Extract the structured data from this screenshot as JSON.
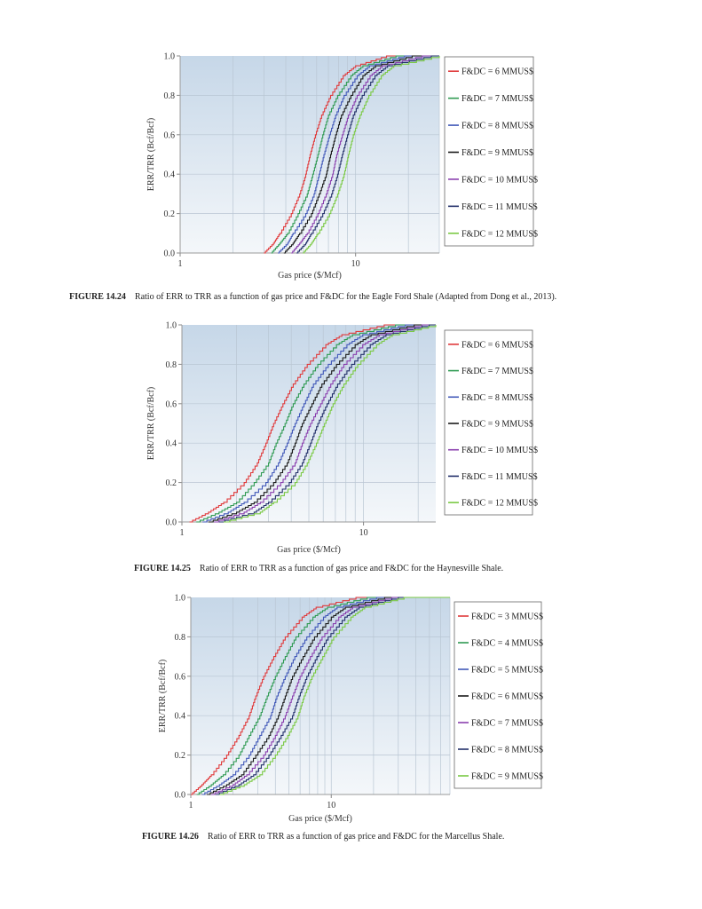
{
  "chart_data": [
    {
      "type": "line",
      "figure_label": "FIGURE 14.24",
      "caption": "Ratio of ERR to TRR as a function of gas price and F&DC for the Eagle Ford Shale (Adapted from Dong et al., 2013).",
      "xlabel": "Gas price ($/Mcf)",
      "ylabel": "ERR/TRR (Bcf/Bcf)",
      "xscale": "log",
      "xlim": [
        1,
        30
      ],
      "ylim": [
        0,
        1
      ],
      "xticks": [
        "1",
        "10"
      ],
      "yticks": [
        "0.0",
        "0.2",
        "0.4",
        "0.6",
        "0.8",
        "1.0"
      ],
      "grid": true,
      "legend_position": "right",
      "y_levels": [
        0,
        0.05,
        0.1,
        0.2,
        0.3,
        0.4,
        0.5,
        0.6,
        0.7,
        0.8,
        0.9,
        0.95,
        1.0
      ],
      "series": [
        {
          "name": "F&DC = 6 MMUS$",
          "color": "#e0393a",
          "x": [
            3.0,
            3.4,
            3.7,
            4.3,
            4.8,
            5.2,
            5.5,
            5.9,
            6.4,
            7.2,
            8.5,
            10,
            15
          ]
        },
        {
          "name": "F&DC = 7 MMUS$",
          "color": "#2f9a52",
          "x": [
            3.3,
            3.7,
            4.1,
            4.7,
            5.3,
            5.7,
            6.1,
            6.5,
            7.0,
            7.9,
            9.4,
            11,
            17
          ]
        },
        {
          "name": "F&DC = 8 MMUS$",
          "color": "#4158b8",
          "x": [
            3.6,
            4.1,
            4.4,
            5.2,
            5.8,
            6.2,
            6.6,
            7.1,
            7.7,
            8.6,
            10.2,
            12,
            19
          ]
        },
        {
          "name": "F&DC = 9 MMUS$",
          "color": "#1a1a1a",
          "x": [
            3.9,
            4.4,
            4.8,
            5.6,
            6.2,
            6.8,
            7.2,
            7.7,
            8.3,
            9.4,
            11,
            13,
            21
          ]
        },
        {
          "name": "F&DC = 10 MMUS$",
          "color": "#8a3fae",
          "x": [
            4.3,
            4.8,
            5.3,
            6.1,
            6.8,
            7.4,
            7.8,
            8.4,
            9.1,
            10.2,
            12.1,
            14.2,
            24
          ]
        },
        {
          "name": "F&DC = 11 MMUS$",
          "color": "#23306a",
          "x": [
            4.6,
            5.2,
            5.6,
            6.5,
            7.3,
            7.9,
            8.4,
            9.0,
            9.7,
            10.9,
            12.9,
            15.2,
            27
          ]
        },
        {
          "name": "F&DC = 12 MMUS$",
          "color": "#7ac943",
          "x": [
            5.0,
            5.6,
            6.1,
            7.1,
            7.9,
            8.6,
            9.1,
            9.7,
            10.6,
            11.9,
            14,
            16.5,
            30
          ]
        }
      ]
    },
    {
      "type": "line",
      "figure_label": "FIGURE 14.25",
      "caption": "Ratio of ERR to TRR as a function of gas price and F&DC for the Haynesville Shale.",
      "xlabel": "Gas price ($/Mcf)",
      "ylabel": "ERR/TRR (Bcf/Bcf)",
      "xscale": "log",
      "xlim": [
        1,
        25
      ],
      "ylim": [
        0,
        1
      ],
      "xticks": [
        "1",
        "10"
      ],
      "yticks": [
        "0.0",
        "0.2",
        "0.4",
        "0.6",
        "0.8",
        "1.0"
      ],
      "grid": true,
      "legend_position": "right",
      "y_levels": [
        0,
        0.05,
        0.1,
        0.2,
        0.3,
        0.4,
        0.5,
        0.6,
        0.7,
        0.8,
        0.9,
        0.95,
        1.0
      ],
      "series": [
        {
          "name": "F&DC = 6 MMUS$",
          "color": "#e0393a",
          "x": [
            1.1,
            1.4,
            1.7,
            2.2,
            2.6,
            2.9,
            3.2,
            3.6,
            4.1,
            4.9,
            6.2,
            7.6,
            13
          ]
        },
        {
          "name": "F&DC = 7 MMUS$",
          "color": "#2f9a52",
          "x": [
            1.2,
            1.6,
            2.0,
            2.5,
            3.0,
            3.3,
            3.7,
            4.1,
            4.7,
            5.6,
            7.1,
            8.7,
            15
          ]
        },
        {
          "name": "F&DC = 8 MMUS$",
          "color": "#4158b8",
          "x": [
            1.3,
            1.8,
            2.2,
            2.9,
            3.4,
            3.8,
            4.2,
            4.7,
            5.3,
            6.4,
            8.1,
            9.9,
            17
          ]
        },
        {
          "name": "F&DC = 9 MMUS$",
          "color": "#1a1a1a",
          "x": [
            1.4,
            2.0,
            2.5,
            3.2,
            3.8,
            4.2,
            4.6,
            5.2,
            5.9,
            7.1,
            9.0,
            11,
            19
          ]
        },
        {
          "name": "F&DC = 10 MMUS$",
          "color": "#8a3fae",
          "x": [
            1.5,
            2.2,
            2.7,
            3.5,
            4.2,
            4.6,
            5.1,
            5.8,
            6.6,
            7.8,
            9.9,
            12.2,
            21
          ]
        },
        {
          "name": "F&DC = 11 MMUS$",
          "color": "#23306a",
          "x": [
            1.6,
            2.5,
            3.0,
            3.9,
            4.6,
            5.1,
            5.6,
            6.3,
            7.2,
            8.6,
            10.9,
            13.3,
            23
          ]
        },
        {
          "name": "F&DC = 12 MMUS$",
          "color": "#7ac943",
          "x": [
            1.7,
            2.7,
            3.2,
            4.2,
            4.9,
            5.5,
            6.1,
            6.8,
            7.8,
            9.3,
            11.8,
            14.4,
            25
          ]
        }
      ]
    },
    {
      "type": "line",
      "figure_label": "FIGURE 14.26",
      "caption": "Ratio of ERR to TRR as a function of gas price and F&DC for the Marcellus Shale.",
      "xlabel": "Gas price ($/Mcf)",
      "ylabel": "ERR/TRR (Bcf/Bcf)",
      "xscale": "log",
      "xlim": [
        1,
        70
      ],
      "ylim": [
        0,
        1
      ],
      "xticks": [
        "1",
        "10"
      ],
      "yticks": [
        "0.0",
        "0.2",
        "0.4",
        "0.6",
        "0.8",
        "1.0"
      ],
      "grid": true,
      "legend_position": "right",
      "y_levels": [
        0,
        0.05,
        0.1,
        0.2,
        0.3,
        0.4,
        0.5,
        0.6,
        0.7,
        0.8,
        0.9,
        0.95,
        1.0
      ],
      "series": [
        {
          "name": "F&DC = 3 MMUS$",
          "color": "#e0393a",
          "x": [
            1.0,
            1.2,
            1.4,
            1.8,
            2.2,
            2.6,
            2.9,
            3.3,
            3.9,
            4.7,
            6.2,
            7.8,
            15
          ]
        },
        {
          "name": "F&DC = 4 MMUS$",
          "color": "#2f9a52",
          "x": [
            1.1,
            1.4,
            1.7,
            2.2,
            2.6,
            3.1,
            3.5,
            4.0,
            4.7,
            5.6,
            7.4,
            9.4,
            18
          ]
        },
        {
          "name": "F&DC = 5 MMUS$",
          "color": "#4158b8",
          "x": [
            1.2,
            1.6,
            2.0,
            2.6,
            3.1,
            3.7,
            4.1,
            4.7,
            5.5,
            6.7,
            8.8,
            11,
            21
          ]
        },
        {
          "name": "F&DC = 6 MMUS$",
          "color": "#1a1a1a",
          "x": [
            1.3,
            1.8,
            2.3,
            2.9,
            3.6,
            4.2,
            4.7,
            5.3,
            6.3,
            7.6,
            10,
            12.6,
            24
          ]
        },
        {
          "name": "F&DC = 7 MMUS$",
          "color": "#8a3fae",
          "x": [
            1.4,
            2.0,
            2.5,
            3.3,
            4.0,
            4.7,
            5.3,
            6.0,
            7.1,
            8.6,
            11.3,
            14.2,
            27
          ]
        },
        {
          "name": "F&DC = 8 MMUS$",
          "color": "#23306a",
          "x": [
            1.5,
            2.2,
            2.8,
            3.6,
            4.4,
            5.3,
            5.9,
            6.7,
            7.9,
            9.5,
            12.5,
            15.8,
            30
          ]
        },
        {
          "name": "F&DC = 9 MMUS$",
          "color": "#7ac943",
          "x": [
            1.6,
            2.4,
            3.1,
            4.0,
            4.9,
            5.8,
            6.4,
            7.3,
            8.7,
            10.4,
            13.8,
            17.3,
            33
          ]
        }
      ]
    }
  ]
}
